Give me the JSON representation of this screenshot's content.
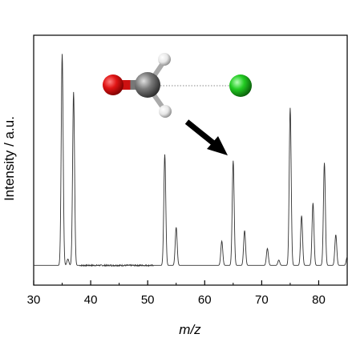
{
  "chart_data": {
    "type": "line",
    "xlabel": "m/z",
    "ylabel": "Intensity / a.u.",
    "xlim": [
      30,
      85
    ],
    "ylim": [
      0,
      1.05
    ],
    "x_ticks": [
      30,
      40,
      50,
      60,
      70,
      80
    ],
    "grid": false,
    "legend": "none",
    "line_color": "#333333",
    "baseline": 0.01,
    "peaks": [
      {
        "mz": 35,
        "intensity": 1.0
      },
      {
        "mz": 36,
        "intensity": 0.03
      },
      {
        "mz": 37,
        "intensity": 0.82
      },
      {
        "mz": 53,
        "intensity": 0.525
      },
      {
        "mz": 55,
        "intensity": 0.18
      },
      {
        "mz": 63,
        "intensity": 0.115
      },
      {
        "mz": 65,
        "intensity": 0.495
      },
      {
        "mz": 67,
        "intensity": 0.165
      },
      {
        "mz": 71,
        "intensity": 0.08
      },
      {
        "mz": 73,
        "intensity": 0.025
      },
      {
        "mz": 75,
        "intensity": 0.745
      },
      {
        "mz": 77,
        "intensity": 0.235
      },
      {
        "mz": 79,
        "intensity": 0.295
      },
      {
        "mz": 81,
        "intensity": 0.485
      },
      {
        "mz": 83,
        "intensity": 0.145
      },
      {
        "mz": 85,
        "intensity": 0.04
      }
    ],
    "annotation": {
      "type": "arrow",
      "points_to_mz": 65,
      "color": "#000000"
    },
    "inset": {
      "type": "molecule-ball-and-stick",
      "atoms": [
        {
          "element": "O",
          "color": "#dd1111"
        },
        {
          "element": "C",
          "color": "#777777"
        },
        {
          "element": "H",
          "color": "#eeeeee"
        },
        {
          "element": "H",
          "color": "#eeeeee"
        },
        {
          "element": "Cl",
          "color": "#22cc22"
        }
      ]
    }
  }
}
